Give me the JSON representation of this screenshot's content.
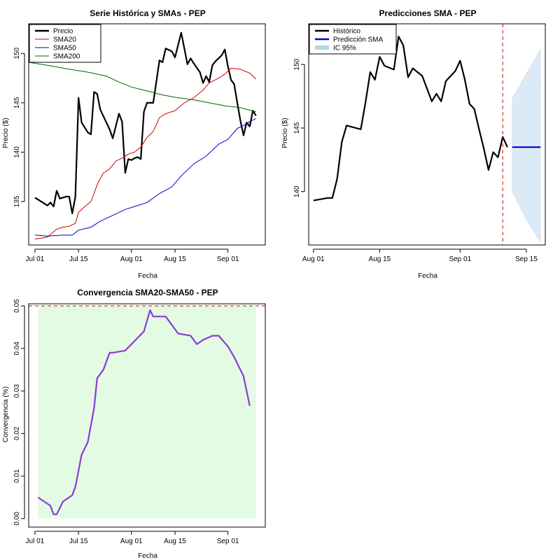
{
  "chart_data": [
    {
      "type": "line",
      "title": "Serie Histórica y SMAs - PEP",
      "xlabel": "Fecha",
      "ylabel": "Precio ($)",
      "xlim": [
        "2025-06-29",
        "2025-09-13"
      ],
      "ylim": [
        130.6,
        153.0
      ],
      "x_ticks": [
        "2025-07-01",
        "2025-07-15",
        "2025-08-01",
        "2025-08-15",
        "2025-09-01"
      ],
      "x_tick_labels": [
        "Jul 01",
        "Jul 15",
        "Aug 01",
        "Aug 15",
        "Sep 01"
      ],
      "y_ticks": [
        135,
        140,
        145,
        150
      ],
      "legend": {
        "position": "top-left",
        "entries": [
          "Precio",
          "SMA20",
          "SMA50",
          "SMA200"
        ]
      },
      "series": [
        {
          "name": "Precio",
          "color": "#000000",
          "points": [
            [
              "2025-07-01",
              135.4
            ],
            [
              "2025-07-03",
              135.0
            ],
            [
              "2025-07-05",
              134.6
            ],
            [
              "2025-07-06",
              134.9
            ],
            [
              "2025-07-07",
              134.5
            ],
            [
              "2025-07-08",
              136.1
            ],
            [
              "2025-07-09",
              135.3
            ],
            [
              "2025-07-11",
              135.5
            ],
            [
              "2025-07-12",
              135.5
            ],
            [
              "2025-07-13",
              133.8
            ],
            [
              "2025-07-14",
              135.5
            ],
            [
              "2025-07-15",
              145.5
            ],
            [
              "2025-07-16",
              143.0
            ],
            [
              "2025-07-18",
              142.0
            ],
            [
              "2025-07-19",
              141.8
            ],
            [
              "2025-07-20",
              146.1
            ],
            [
              "2025-07-21",
              145.9
            ],
            [
              "2025-07-22",
              144.3
            ],
            [
              "2025-07-25",
              142.3
            ],
            [
              "2025-07-26",
              141.4
            ],
            [
              "2025-07-28",
              143.9
            ],
            [
              "2025-07-29",
              143.1
            ],
            [
              "2025-07-30",
              137.9
            ],
            [
              "2025-07-31",
              139.3
            ],
            [
              "2025-08-01",
              139.2
            ],
            [
              "2025-08-02",
              139.4
            ],
            [
              "2025-08-03",
              139.5
            ],
            [
              "2025-08-04",
              139.3
            ],
            [
              "2025-08-05",
              144.1
            ],
            [
              "2025-08-06",
              145.0
            ],
            [
              "2025-08-08",
              145.0
            ],
            [
              "2025-08-09",
              147.1
            ],
            [
              "2025-08-10",
              149.3
            ],
            [
              "2025-08-11",
              149.1
            ],
            [
              "2025-08-12",
              150.5
            ],
            [
              "2025-08-14",
              150.2
            ],
            [
              "2025-08-15",
              149.6
            ],
            [
              "2025-08-17",
              152.1
            ],
            [
              "2025-08-19",
              148.9
            ],
            [
              "2025-08-20",
              149.5
            ],
            [
              "2025-08-21",
              149.0
            ],
            [
              "2025-08-23",
              148.1
            ],
            [
              "2025-08-24",
              147.0
            ],
            [
              "2025-08-25",
              147.7
            ],
            [
              "2025-08-26",
              147.1
            ],
            [
              "2025-08-27",
              148.8
            ],
            [
              "2025-08-28",
              149.2
            ],
            [
              "2025-08-30",
              149.8
            ],
            [
              "2025-08-31",
              150.4
            ],
            [
              "2025-09-01",
              148.7
            ],
            [
              "2025-09-02",
              147.3
            ],
            [
              "2025-09-03",
              146.9
            ],
            [
              "2025-09-04",
              145.0
            ],
            [
              "2025-09-05",
              143.2
            ],
            [
              "2025-09-06",
              141.7
            ],
            [
              "2025-09-07",
              143.0
            ],
            [
              "2025-09-08",
              142.6
            ],
            [
              "2025-09-09",
              144.2
            ],
            [
              "2025-09-10",
              143.7
            ]
          ]
        },
        {
          "name": "SMA20",
          "color": "#d40000",
          "points": [
            [
              "2025-07-01",
              131.2
            ],
            [
              "2025-07-05",
              131.4
            ],
            [
              "2025-07-08",
              132.2
            ],
            [
              "2025-07-10",
              132.4
            ],
            [
              "2025-07-12",
              132.5
            ],
            [
              "2025-07-14",
              132.8
            ],
            [
              "2025-07-15",
              133.9
            ],
            [
              "2025-07-17",
              134.5
            ],
            [
              "2025-07-19",
              135.0
            ],
            [
              "2025-07-21",
              136.7
            ],
            [
              "2025-07-23",
              137.9
            ],
            [
              "2025-07-25",
              138.3
            ],
            [
              "2025-07-27",
              139.1
            ],
            [
              "2025-07-29",
              139.4
            ],
            [
              "2025-07-31",
              139.8
            ],
            [
              "2025-08-02",
              140.0
            ],
            [
              "2025-08-04",
              140.5
            ],
            [
              "2025-08-06",
              141.5
            ],
            [
              "2025-08-08",
              142.1
            ],
            [
              "2025-08-10",
              143.5
            ],
            [
              "2025-08-12",
              143.9
            ],
            [
              "2025-08-15",
              144.2
            ],
            [
              "2025-08-18",
              145.0
            ],
            [
              "2025-08-21",
              145.5
            ],
            [
              "2025-08-24",
              146.3
            ],
            [
              "2025-08-26",
              147.0
            ],
            [
              "2025-08-29",
              147.5
            ],
            [
              "2025-08-31",
              147.9
            ],
            [
              "2025-09-02",
              148.5
            ],
            [
              "2025-09-05",
              148.4
            ],
            [
              "2025-09-08",
              148.0
            ],
            [
              "2025-09-10",
              147.4
            ]
          ]
        },
        {
          "name": "SMA50",
          "color": "#0000cc",
          "points": [
            [
              "2025-07-01",
              131.6
            ],
            [
              "2025-07-05",
              131.5
            ],
            [
              "2025-07-10",
              131.6
            ],
            [
              "2025-07-13",
              131.6
            ],
            [
              "2025-07-15",
              132.1
            ],
            [
              "2025-07-19",
              132.4
            ],
            [
              "2025-07-22",
              133.0
            ],
            [
              "2025-07-26",
              133.6
            ],
            [
              "2025-07-30",
              134.2
            ],
            [
              "2025-08-03",
              134.6
            ],
            [
              "2025-08-06",
              134.9
            ],
            [
              "2025-08-10",
              135.8
            ],
            [
              "2025-08-14",
              136.5
            ],
            [
              "2025-08-17",
              137.6
            ],
            [
              "2025-08-21",
              138.8
            ],
            [
              "2025-08-25",
              139.6
            ],
            [
              "2025-08-29",
              140.8
            ],
            [
              "2025-09-01",
              141.3
            ],
            [
              "2025-09-04",
              142.4
            ],
            [
              "2025-09-06",
              142.7
            ],
            [
              "2025-09-08",
              143.1
            ],
            [
              "2025-09-10",
              143.4
            ]
          ]
        },
        {
          "name": "SMA200",
          "color": "#006400",
          "points": [
            [
              "2025-06-29",
              149.1
            ],
            [
              "2025-07-05",
              148.8
            ],
            [
              "2025-07-12",
              148.4
            ],
            [
              "2025-07-18",
              148.1
            ],
            [
              "2025-07-24",
              147.7
            ],
            [
              "2025-07-28",
              147.1
            ],
            [
              "2025-08-01",
              146.6
            ],
            [
              "2025-08-06",
              146.2
            ],
            [
              "2025-08-11",
              145.8
            ],
            [
              "2025-08-16",
              145.5
            ],
            [
              "2025-08-21",
              145.3
            ],
            [
              "2025-08-26",
              145.0
            ],
            [
              "2025-08-31",
              144.7
            ],
            [
              "2025-09-05",
              144.5
            ],
            [
              "2025-09-10",
              144.1
            ]
          ]
        }
      ]
    },
    {
      "type": "line",
      "title": "Predicciones SMA - PEP",
      "xlabel": "Fecha",
      "ylabel": "Precio ($)",
      "xlim": [
        "2025-07-31",
        "2025-09-19"
      ],
      "ylim": [
        135.8,
        153.2
      ],
      "x_ticks": [
        "2025-08-01",
        "2025-08-15",
        "2025-09-01",
        "2025-09-15"
      ],
      "x_tick_labels": [
        "Aug 01",
        "Aug 15",
        "Sep 01",
        "Sep 15"
      ],
      "y_ticks": [
        140,
        145,
        150
      ],
      "legend": {
        "position": "top-left",
        "entries": [
          "Histórico",
          "Predicción SMA",
          "IC 95%"
        ]
      },
      "vline": {
        "x": "2025-09-10",
        "color": "#cc0000",
        "style": "dashed"
      },
      "series": [
        {
          "name": "Histórico",
          "color": "#000000",
          "points": [
            [
              "2025-08-01",
              139.3
            ],
            [
              "2025-08-04",
              139.5
            ],
            [
              "2025-08-05",
              139.5
            ],
            [
              "2025-08-06",
              141.0
            ],
            [
              "2025-08-07",
              143.9
            ],
            [
              "2025-08-08",
              145.2
            ],
            [
              "2025-08-10",
              145.0
            ],
            [
              "2025-08-11",
              144.9
            ],
            [
              "2025-08-12",
              147.0
            ],
            [
              "2025-08-13",
              149.4
            ],
            [
              "2025-08-14",
              148.8
            ],
            [
              "2025-08-15",
              150.6
            ],
            [
              "2025-08-16",
              149.9
            ],
            [
              "2025-08-18",
              149.6
            ],
            [
              "2025-08-19",
              152.2
            ],
            [
              "2025-08-20",
              151.5
            ],
            [
              "2025-08-21",
              149.0
            ],
            [
              "2025-08-22",
              149.7
            ],
            [
              "2025-08-24",
              149.1
            ],
            [
              "2025-08-26",
              147.1
            ],
            [
              "2025-08-27",
              147.7
            ],
            [
              "2025-08-28",
              147.1
            ],
            [
              "2025-08-29",
              148.7
            ],
            [
              "2025-08-31",
              149.5
            ],
            [
              "2025-09-01",
              150.3
            ],
            [
              "2025-09-02",
              148.8
            ],
            [
              "2025-09-03",
              146.9
            ],
            [
              "2025-09-04",
              146.5
            ],
            [
              "2025-09-05",
              144.9
            ],
            [
              "2025-09-06",
              143.4
            ],
            [
              "2025-09-07",
              141.7
            ],
            [
              "2025-09-08",
              143.1
            ],
            [
              "2025-09-09",
              142.7
            ],
            [
              "2025-09-10",
              144.3
            ],
            [
              "2025-09-11",
              143.5
            ]
          ]
        },
        {
          "name": "Predicción SMA",
          "color": "#0000cc",
          "points": [
            [
              "2025-09-12",
              143.5
            ],
            [
              "2025-09-18",
              143.5
            ]
          ]
        }
      ],
      "interval": {
        "name": "IC 95%",
        "color": "#dbeaf6",
        "upper": [
          [
            "2025-09-12",
            147.3
          ],
          [
            "2025-09-15",
            149.3
          ],
          [
            "2025-09-18",
            151.2
          ]
        ],
        "lower": [
          [
            "2025-09-18",
            136.0
          ],
          [
            "2025-09-15",
            137.8
          ],
          [
            "2025-09-12",
            140.0
          ]
        ]
      }
    },
    {
      "type": "line",
      "title": "Convergencia SMA20-SMA50 - PEP",
      "xlabel": "Fecha",
      "ylabel": "Convergencia (%)",
      "xlim": [
        "2025-06-29",
        "2025-09-13"
      ],
      "ylim": [
        -0.002,
        0.0505
      ],
      "x_ticks": [
        "2025-07-01",
        "2025-07-15",
        "2025-08-01",
        "2025-08-15",
        "2025-09-01"
      ],
      "x_tick_labels": [
        "Jul 01",
        "Jul 15",
        "Aug 01",
        "Aug 15",
        "Sep 01"
      ],
      "y_ticks": [
        0.0,
        0.01,
        0.02,
        0.03,
        0.04,
        0.05
      ],
      "y_tick_labels": [
        "0.00",
        "0.01",
        "0.02",
        "0.03",
        "0.04",
        "0.05"
      ],
      "threshold": {
        "y": 0.05,
        "color": "#cc0000",
        "style": "dashed"
      },
      "band": {
        "y": [
          0,
          0.05
        ],
        "x": [
          "2025-07-02",
          "2025-09-10"
        ],
        "color": "#e3fbe3"
      },
      "series": [
        {
          "name": "Convergencia",
          "color": "#8b3ad9",
          "points": [
            [
              "2025-07-02",
              0.005
            ],
            [
              "2025-07-04",
              0.004
            ],
            [
              "2025-07-06",
              0.003
            ],
            [
              "2025-07-07",
              0.001
            ],
            [
              "2025-07-08",
              0.001
            ],
            [
              "2025-07-10",
              0.004
            ],
            [
              "2025-07-13",
              0.0055
            ],
            [
              "2025-07-14",
              0.0075
            ],
            [
              "2025-07-16",
              0.015
            ],
            [
              "2025-07-18",
              0.018
            ],
            [
              "2025-07-20",
              0.026
            ],
            [
              "2025-07-21",
              0.033
            ],
            [
              "2025-07-23",
              0.035
            ],
            [
              "2025-07-25",
              0.039
            ],
            [
              "2025-07-26",
              0.039
            ],
            [
              "2025-07-30",
              0.0395
            ],
            [
              "2025-08-03",
              0.0425
            ],
            [
              "2025-08-05",
              0.044
            ],
            [
              "2025-08-07",
              0.049
            ],
            [
              "2025-08-08",
              0.0475
            ],
            [
              "2025-08-12",
              0.0475
            ],
            [
              "2025-08-16",
              0.0435
            ],
            [
              "2025-08-20",
              0.043
            ],
            [
              "2025-08-22",
              0.041
            ],
            [
              "2025-08-24",
              0.042
            ],
            [
              "2025-08-27",
              0.043
            ],
            [
              "2025-08-29",
              0.043
            ],
            [
              "2025-09-01",
              0.0405
            ],
            [
              "2025-09-03",
              0.038
            ],
            [
              "2025-09-06",
              0.0335
            ],
            [
              "2025-09-08",
              0.0265
            ]
          ]
        }
      ]
    }
  ]
}
